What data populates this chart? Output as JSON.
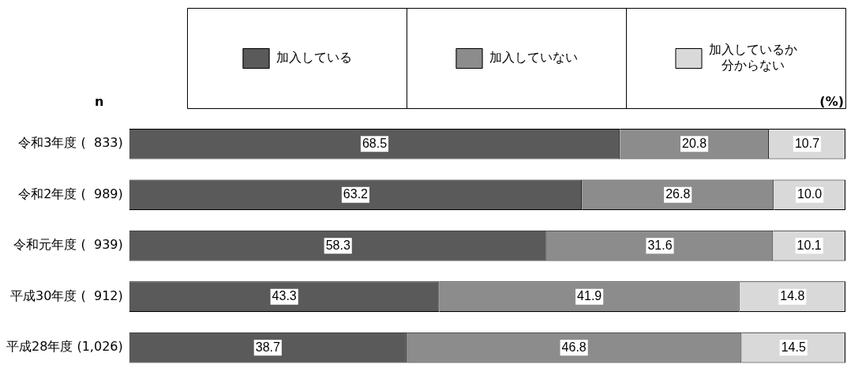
{
  "chart_data": {
    "type": "bar",
    "orientation": "horizontal",
    "stacked": true,
    "categories": [
      "令和3年度 (  833)",
      "令和2年度 (  989)",
      "令和元年度 (  939)",
      "平成30年度 (  912)",
      "平成28年度 (1,026)"
    ],
    "series": [
      {
        "name": "加入している",
        "color": "#5a5a5a",
        "values": [
          68.5,
          63.2,
          58.3,
          43.3,
          38.7
        ],
        "value_labels": [
          "68.5",
          "63.2",
          "58.3",
          "43.3",
          "38.7"
        ]
      },
      {
        "name": "加入していない",
        "color": "#8c8c8c",
        "values": [
          20.8,
          26.8,
          31.6,
          41.9,
          46.8
        ],
        "value_labels": [
          "20.8",
          "26.8",
          "31.6",
          "41.9",
          "46.8"
        ]
      },
      {
        "name": "加入しているか分からない",
        "color": "#d9d9d9",
        "values": [
          10.7,
          10.0,
          10.1,
          14.8,
          14.5
        ],
        "value_labels": [
          "10.7",
          "10.0",
          "10.1",
          "14.8",
          "14.5"
        ]
      }
    ],
    "xlim": [
      0,
      100
    ],
    "tick_labels": "y",
    "legend": "top",
    "annotations": [
      "n",
      "(%)"
    ]
  }
}
